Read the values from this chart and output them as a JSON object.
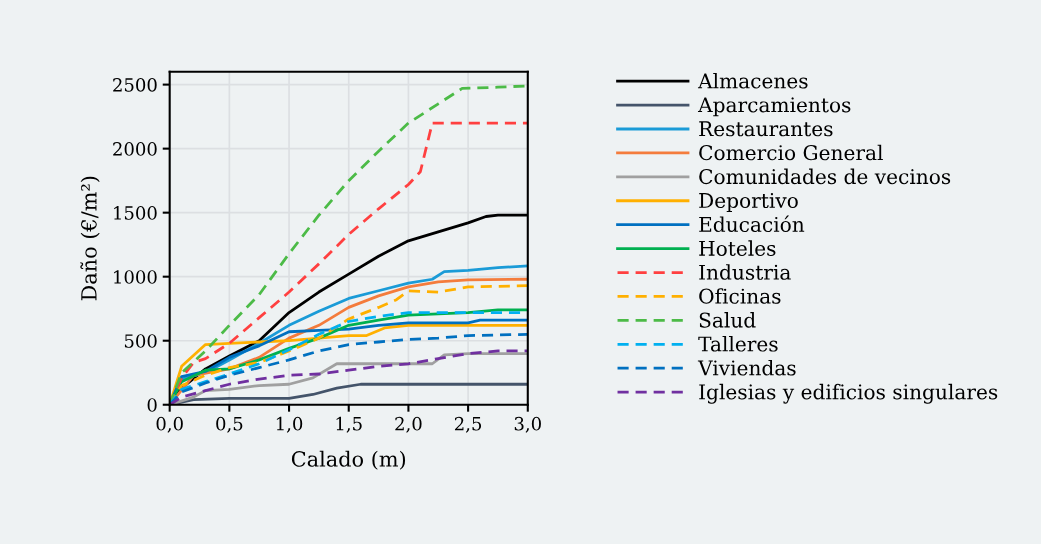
{
  "chart_data": {
    "type": "line",
    "xlabel": "Calado (m)",
    "ylabel": "Daño (€/m²)",
    "xlim": [
      0,
      3
    ],
    "xticks": [
      {
        "value": 0,
        "label": "0,0"
      },
      {
        "value": 0.5,
        "label": "0,5"
      },
      {
        "value": 1,
        "label": "1,0"
      },
      {
        "value": 1.5,
        "label": "1,5"
      },
      {
        "value": 2,
        "label": "2,0"
      },
      {
        "value": 2.5,
        "label": "2,5"
      },
      {
        "value": 3,
        "label": "3,0"
      }
    ],
    "ylim": [
      0,
      2600
    ],
    "yticks": [
      0,
      500,
      1000,
      1500,
      2000,
      2500
    ],
    "grid": true,
    "legend": "right",
    "marker": "none",
    "series": [
      {
        "name": "Almacenes",
        "color": "#000000",
        "line_style": "solid",
        "x": [
          0,
          0.1,
          0.3,
          0.5,
          0.75,
          1.0,
          1.25,
          1.5,
          1.75,
          2.0,
          2.25,
          2.5,
          2.65,
          2.75,
          3.0
        ],
        "values": [
          0,
          130,
          280,
          380,
          500,
          720,
          880,
          1020,
          1160,
          1280,
          1350,
          1420,
          1470,
          1480,
          1480
        ]
      },
      {
        "name": "Aparcamientos",
        "color": "#44546a",
        "line_style": "solid",
        "x": [
          0,
          0.2,
          0.5,
          1.0,
          1.2,
          1.4,
          1.6,
          3.0
        ],
        "values": [
          0,
          40,
          50,
          50,
          80,
          130,
          160,
          160
        ]
      },
      {
        "name": "Restaurantes",
        "color": "#1a9bd7",
        "line_style": "solid",
        "x": [
          0,
          0.1,
          0.3,
          0.5,
          0.75,
          1.0,
          1.25,
          1.5,
          1.75,
          2.0,
          2.2,
          2.3,
          2.5,
          2.75,
          3.0
        ],
        "values": [
          0,
          200,
          250,
          350,
          480,
          620,
          730,
          830,
          890,
          950,
          980,
          1040,
          1050,
          1070,
          1085
        ]
      },
      {
        "name": "Comercio General",
        "color": "#f47c3c",
        "line_style": "solid",
        "x": [
          0,
          0.2,
          0.5,
          0.75,
          1.0,
          1.25,
          1.5,
          1.75,
          2.0,
          2.25,
          2.5,
          3.0
        ],
        "values": [
          0,
          230,
          280,
          370,
          520,
          620,
          760,
          850,
          920,
          960,
          975,
          980
        ]
      },
      {
        "name": "Comunidades de vecinos",
        "color": "#a0a0a0",
        "line_style": "solid",
        "x": [
          0,
          0.2,
          0.3,
          0.5,
          0.75,
          1.0,
          1.2,
          1.4,
          2.0,
          2.2,
          2.3,
          2.5,
          3.0
        ],
        "values": [
          0,
          60,
          110,
          120,
          150,
          160,
          210,
          320,
          320,
          320,
          390,
          400,
          400
        ]
      },
      {
        "name": "Deportivo",
        "color": "#ffb000",
        "line_style": "solid",
        "x": [
          0,
          0.1,
          0.3,
          0.5,
          0.75,
          1.0,
          1.25,
          1.5,
          1.65,
          1.8,
          2.0,
          3.0
        ],
        "values": [
          0,
          300,
          470,
          480,
          490,
          500,
          520,
          540,
          540,
          600,
          620,
          620
        ]
      },
      {
        "name": "Educación",
        "color": "#0070c0",
        "line_style": "solid",
        "x": [
          0,
          0.1,
          0.3,
          0.5,
          0.75,
          1.0,
          1.25,
          1.5,
          1.75,
          2.0,
          2.5,
          2.6,
          3.0
        ],
        "values": [
          0,
          220,
          260,
          370,
          460,
          570,
          580,
          590,
          620,
          640,
          640,
          660,
          660
        ]
      },
      {
        "name": "Hoteles",
        "color": "#00b050",
        "line_style": "solid",
        "x": [
          0,
          0.1,
          0.3,
          0.5,
          0.75,
          1.0,
          1.25,
          1.5,
          1.75,
          2.0,
          2.25,
          2.5,
          2.75,
          3.0
        ],
        "values": [
          0,
          180,
          270,
          280,
          350,
          440,
          520,
          620,
          660,
          700,
          710,
          720,
          740,
          740
        ]
      },
      {
        "name": "Industria",
        "color": "#ff4040",
        "line_style": "dashed",
        "x": [
          0,
          0.1,
          0.2,
          0.3,
          0.5,
          0.75,
          1.0,
          1.25,
          1.5,
          1.75,
          2.0,
          2.1,
          2.2,
          3.0
        ],
        "values": [
          0,
          210,
          330,
          360,
          480,
          680,
          880,
          1100,
          1330,
          1530,
          1720,
          1820,
          2200,
          2200
        ]
      },
      {
        "name": "Oficinas",
        "color": "#ffb000",
        "line_style": "dashed",
        "x": [
          0,
          0.1,
          0.3,
          0.5,
          0.75,
          1.0,
          1.25,
          1.5,
          1.75,
          1.9,
          2.0,
          2.25,
          2.5,
          3.0
        ],
        "values": [
          0,
          150,
          230,
          290,
          330,
          420,
          520,
          670,
          760,
          820,
          890,
          880,
          920,
          930
        ]
      },
      {
        "name": "Salud",
        "color": "#4cbb47",
        "line_style": "dashed",
        "x": [
          0,
          0.1,
          0.3,
          0.5,
          0.75,
          1.0,
          1.25,
          1.5,
          1.75,
          2.0,
          2.25,
          2.45,
          2.75,
          3.0
        ],
        "values": [
          0,
          250,
          420,
          620,
          860,
          1180,
          1480,
          1750,
          1980,
          2200,
          2350,
          2470,
          2480,
          2490
        ]
      },
      {
        "name": "Talleres",
        "color": "#00b0f0",
        "line_style": "dashed",
        "x": [
          0,
          0.1,
          0.3,
          0.5,
          0.75,
          1.0,
          1.25,
          1.5,
          1.75,
          2.0,
          2.5,
          3.0
        ],
        "values": [
          0,
          120,
          180,
          240,
          320,
          430,
          550,
          650,
          690,
          720,
          720,
          720
        ]
      },
      {
        "name": "Viviendas",
        "color": "#0070c0",
        "line_style": "dashed",
        "x": [
          0,
          0.1,
          0.3,
          0.5,
          0.75,
          1.0,
          1.25,
          1.5,
          1.75,
          2.0,
          2.25,
          2.5,
          3.0
        ],
        "values": [
          0,
          100,
          170,
          230,
          290,
          350,
          420,
          470,
          490,
          510,
          520,
          540,
          550
        ]
      },
      {
        "name": "Iglesias y edificios singulares",
        "color": "#7030a0",
        "line_style": "dashed",
        "x": [
          0,
          0.1,
          0.3,
          0.5,
          0.75,
          1.0,
          1.25,
          1.5,
          1.75,
          2.0,
          2.25,
          2.5,
          2.75,
          3.0
        ],
        "values": [
          0,
          60,
          110,
          160,
          200,
          230,
          240,
          270,
          300,
          320,
          360,
          400,
          420,
          420
        ]
      }
    ]
  }
}
